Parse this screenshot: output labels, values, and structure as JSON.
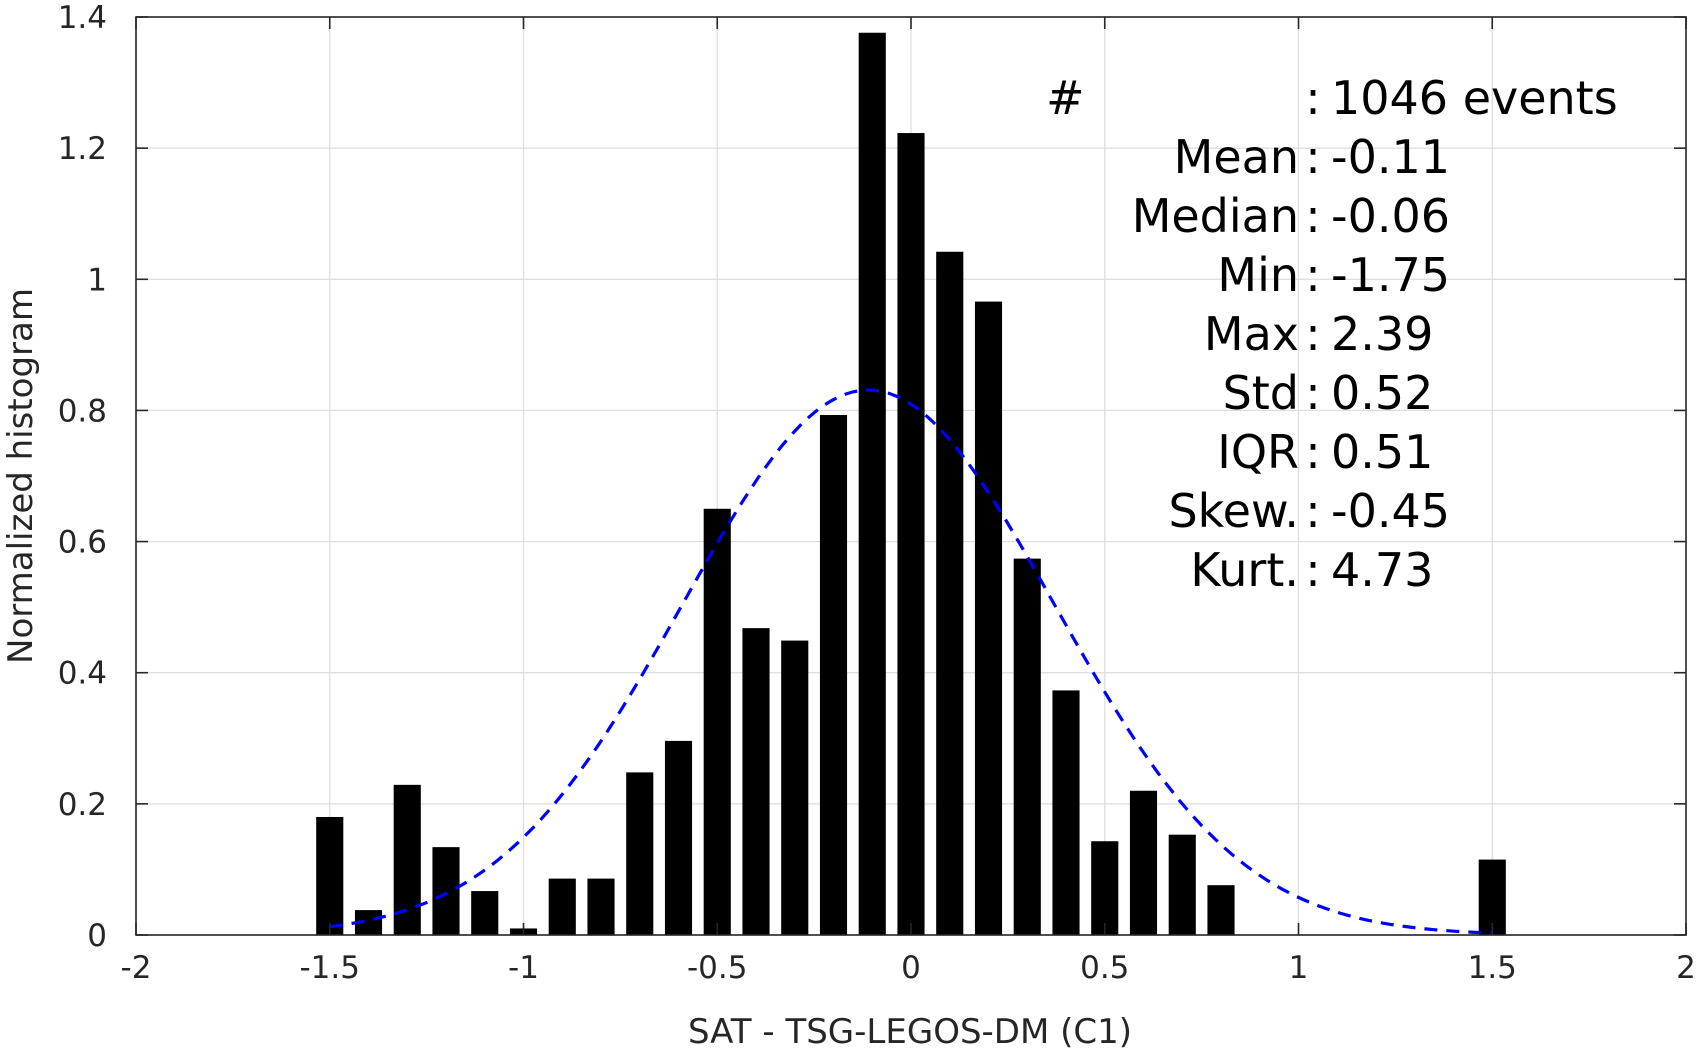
{
  "chart_data": {
    "type": "bar",
    "xlabel": "SAT - TSG-LEGOS-DM (C1)",
    "ylabel": "Normalized histogram",
    "xlim": [
      -2,
      2
    ],
    "ylim": [
      0,
      1.4
    ],
    "grid": true,
    "xticks": [
      -2,
      -1.5,
      -1,
      -0.5,
      0,
      0.5,
      1,
      1.5,
      2
    ],
    "xtick_labels": [
      "-2",
      "-1.5",
      "-1",
      "-0.5",
      "0",
      "0.5",
      "1",
      "1.5",
      "2"
    ],
    "yticks": [
      0,
      0.2,
      0.4,
      0.6,
      0.8,
      1,
      1.2,
      1.4
    ],
    "ytick_labels": [
      "0",
      "0.2",
      "0.4",
      "0.6",
      "0.8",
      "1",
      "1.2",
      "1.4"
    ],
    "bin_width": 0.1,
    "bar_color": "#000000",
    "bars": [
      {
        "x": -1.5,
        "y": 0.18
      },
      {
        "x": -1.4,
        "y": 0.038
      },
      {
        "x": -1.3,
        "y": 0.229
      },
      {
        "x": -1.2,
        "y": 0.134
      },
      {
        "x": -1.1,
        "y": 0.067
      },
      {
        "x": -1.0,
        "y": 0.01
      },
      {
        "x": -0.9,
        "y": 0.086
      },
      {
        "x": -0.8,
        "y": 0.086
      },
      {
        "x": -0.7,
        "y": 0.248
      },
      {
        "x": -0.6,
        "y": 0.296
      },
      {
        "x": -0.5,
        "y": 0.65
      },
      {
        "x": -0.4,
        "y": 0.468
      },
      {
        "x": -0.3,
        "y": 0.449
      },
      {
        "x": -0.2,
        "y": 0.793
      },
      {
        "x": -0.1,
        "y": 1.376
      },
      {
        "x": 0.0,
        "y": 1.223
      },
      {
        "x": 0.1,
        "y": 1.042
      },
      {
        "x": 0.2,
        "y": 0.966
      },
      {
        "x": 0.3,
        "y": 0.574
      },
      {
        "x": 0.4,
        "y": 0.373
      },
      {
        "x": 0.5,
        "y": 0.143
      },
      {
        "x": 0.6,
        "y": 0.22
      },
      {
        "x": 0.7,
        "y": 0.153
      },
      {
        "x": 0.8,
        "y": 0.076
      },
      {
        "x": 1.5,
        "y": 0.115
      }
    ],
    "fit_curve": {
      "type": "normal",
      "mean": -0.11,
      "std": 0.48,
      "x_range": [
        -1.5,
        1.5
      ],
      "color": "#0000ff",
      "style": "dashed"
    },
    "stats_lines": [
      "#  : 1046 events",
      "Mean : -0.11",
      "Median : -0.06",
      "Min : -1.75",
      "Max : 2.39",
      "Std : 0.52",
      "IQR : 0.51",
      "Skew. : -0.45",
      "Kurt. : 4.73"
    ]
  }
}
